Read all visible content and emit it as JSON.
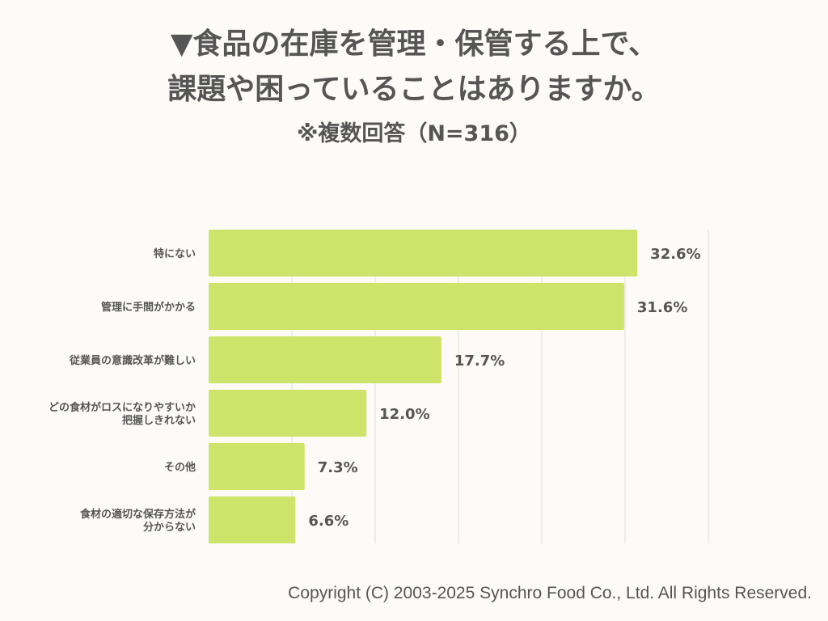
{
  "chart_data": {
    "type": "bar",
    "orientation": "horizontal",
    "title": "▼食品の在庫を管理・保管する上で、",
    "title_line2": "課題や困っていることはありますか。",
    "subtitle": "※複数回答（N=316）",
    "categories": [
      [
        "特にない"
      ],
      [
        "管理に手間がかかる"
      ],
      [
        "従業員の意識改革が難しい"
      ],
      [
        "どの食材がロスになりやすいか",
        "把握しきれない"
      ],
      [
        "その他"
      ],
      [
        "食材の適切な保存方法が",
        "分からない"
      ]
    ],
    "values": [
      32.6,
      31.6,
      17.7,
      12.0,
      7.3,
      6.6
    ],
    "data_labels": [
      "32.6%",
      "31.6%",
      "17.7%",
      "12.0%",
      "7.3%",
      "6.6%"
    ],
    "unit": "%",
    "xlim": [
      0,
      38
    ],
    "grid": true,
    "bar_color": "#cde36a",
    "grid_color": "#dddddd",
    "text_color": "#555555"
  },
  "footer": {
    "copyright": "Copyright (C) 2003-2025  Synchro Food Co., Ltd. All Rights Reserved."
  }
}
